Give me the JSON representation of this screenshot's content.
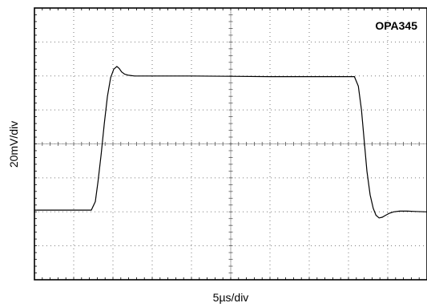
{
  "chart_data": {
    "type": "line",
    "title": "OPA345",
    "xlabel": "5µs/div",
    "ylabel": "20mV/div",
    "x_divisions": 10,
    "y_divisions": 8,
    "grid": true,
    "x_unit": "div",
    "y_unit": "div",
    "xlim": [
      0,
      10
    ],
    "ylim": [
      0,
      8
    ],
    "series": [
      {
        "x": [
          0,
          1.45,
          1.55,
          1.62,
          1.7,
          1.78,
          1.86,
          1.94,
          2.02,
          2.1,
          2.16,
          2.22,
          2.3,
          2.4,
          2.55,
          2.75,
          3.0,
          4.0,
          5.0,
          6.0,
          7.0,
          8.15,
          8.25,
          8.33,
          8.4,
          8.47,
          8.55,
          8.63,
          8.7,
          8.78,
          8.86,
          8.95,
          9.05,
          9.15,
          9.3,
          9.5,
          9.7,
          10.0
        ],
        "y": [
          2.05,
          2.05,
          2.3,
          2.9,
          3.7,
          4.6,
          5.4,
          5.95,
          6.2,
          6.28,
          6.22,
          6.12,
          6.05,
          6.02,
          6.0,
          6.0,
          6.0,
          6.0,
          5.99,
          5.98,
          5.98,
          5.98,
          5.7,
          5.0,
          4.1,
          3.2,
          2.5,
          2.1,
          1.9,
          1.82,
          1.84,
          1.9,
          1.96,
          2.0,
          2.02,
          2.02,
          2.01,
          2.0
        ]
      }
    ]
  }
}
